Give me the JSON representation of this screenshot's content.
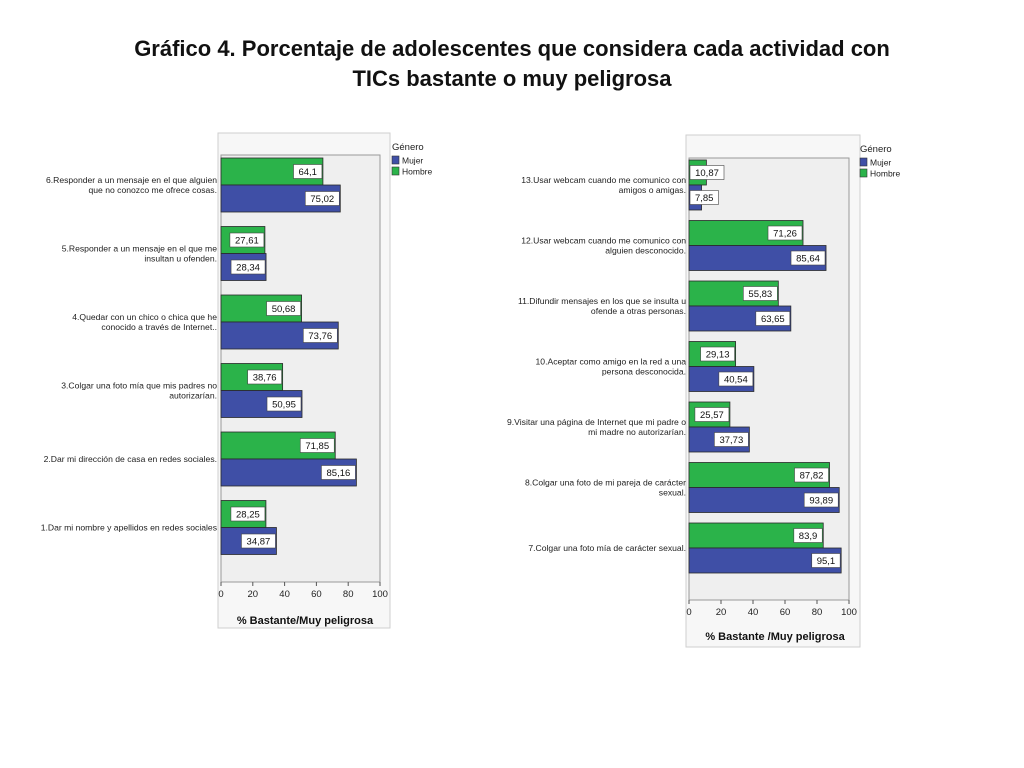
{
  "page": {
    "title_line1": "Gráfico 4.  Porcentaje de adolescentes que considera cada actividad con",
    "title_line2": "TICs bastante o muy peligrosa"
  },
  "colors": {
    "mujer": "#3f4fa6",
    "hombre": "#2bb34a",
    "plot_bg": "#efefef"
  },
  "chart_data": [
    {
      "type": "bar",
      "orientation": "horizontal",
      "legend_title": "Género",
      "series": [
        {
          "name": "Hombre",
          "values": [
            64.1,
            27.61,
            50.68,
            38.76,
            71.85,
            28.25
          ],
          "labels": [
            "64,1",
            "27,61",
            "50,68",
            "38,76",
            "71,85",
            "28,25"
          ]
        },
        {
          "name": "Mujer",
          "values": [
            75.02,
            28.34,
            73.76,
            50.95,
            85.16,
            34.87
          ],
          "labels": [
            "75,02",
            "28,34",
            "73,76",
            "50,95",
            "85,16",
            "34,87"
          ]
        }
      ],
      "legend": [
        "Mujer",
        "Hombre"
      ],
      "categories": [
        [
          "6.Responder a un mensaje en el que alguien",
          "que no conozco me ofrece cosas."
        ],
        [
          "5.Responder a un mensaje en el que me",
          "insultan u ofenden."
        ],
        [
          "4.Quedar con un chico o chica que he",
          "conocido a través de Internet.."
        ],
        [
          "3.Colgar una foto mía que mis padres no",
          "autorizarían."
        ],
        [
          "2.Dar mi dirección de casa en redes sociales."
        ],
        [
          "1.Dar mi nombre y apellidos en redes sociales"
        ]
      ],
      "xlabel": "% Bastante/Muy peligrosa",
      "xlim": [
        0,
        100
      ],
      "xticks": [
        "0",
        "20",
        "40",
        "60",
        "80",
        "100"
      ]
    },
    {
      "type": "bar",
      "orientation": "horizontal",
      "legend_title": "Género",
      "series": [
        {
          "name": "Hombre",
          "values": [
            10.87,
            71.26,
            55.83,
            29.13,
            25.57,
            87.82,
            83.9
          ],
          "labels": [
            "10,87",
            "71,26",
            "55,83",
            "29,13",
            "25,57",
            "87,82",
            "83,9"
          ]
        },
        {
          "name": "Mujer",
          "values": [
            7.85,
            85.64,
            63.65,
            40.54,
            37.73,
            93.89,
            95.1
          ],
          "labels": [
            "7,85",
            "85,64",
            "63,65",
            "40,54",
            "37,73",
            "93,89",
            "95,1"
          ]
        }
      ],
      "legend": [
        "Mujer",
        "Hombre"
      ],
      "categories": [
        [
          "13.Usar webcam cuando me comunico con",
          "amigos o amigas."
        ],
        [
          "12.Usar webcam cuando me comunico con",
          "alguien desconocido."
        ],
        [
          "11.Difundir mensajes en los que se insulta u",
          "ofende a otras personas."
        ],
        [
          "10.Aceptar como amigo en la red a una",
          "persona desconocida."
        ],
        [
          "9.Visitar una página de Internet que mi padre o",
          "mi madre no autorizarían."
        ],
        [
          "8.Colgar una foto de mi pareja de carácter",
          "sexual."
        ],
        [
          "7.Colgar una foto mía de carácter sexual."
        ]
      ],
      "xlabel": "% Bastante /Muy peligrosa",
      "xlim": [
        0,
        100
      ],
      "xticks": [
        "0",
        "20",
        "40",
        "60",
        "80",
        "100"
      ]
    }
  ]
}
